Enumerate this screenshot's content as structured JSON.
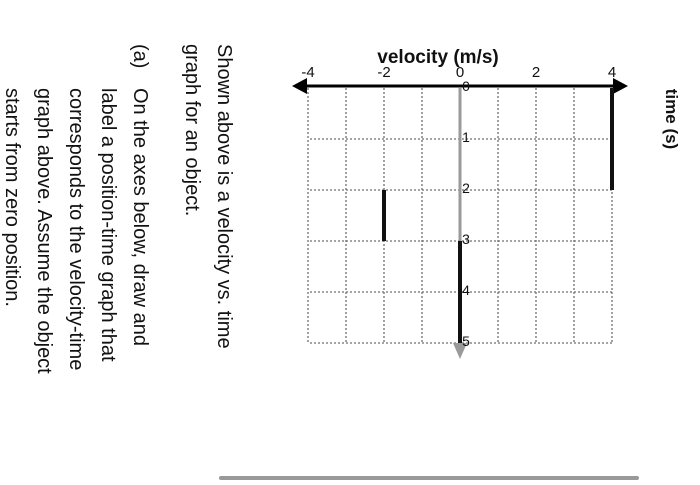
{
  "chart_data": {
    "type": "line",
    "title": "",
    "xlabel": "time (s)",
    "ylabel": "velocity (m/s)",
    "xlim": [
      0,
      5
    ],
    "ylim": [
      -4,
      4
    ],
    "x_ticks": [
      "0",
      "1",
      "2",
      "3",
      "4",
      "5"
    ],
    "y_ticks": [
      "-4",
      "-2",
      "0",
      "2",
      "4"
    ],
    "grid": true,
    "grid_style": "dotted",
    "segments": [
      {
        "x": [
          0,
          2
        ],
        "y": [
          4,
          4
        ]
      },
      {
        "x": [
          2,
          3
        ],
        "y": [
          -2,
          -2
        ]
      },
      {
        "x": [
          3,
          5
        ],
        "y": [
          0,
          0
        ]
      }
    ],
    "colors": {
      "data": "#111111",
      "time_axis": "#9a9a9a",
      "velocity_axis": "#000000",
      "grid": "#6f6f6f"
    }
  },
  "question": {
    "intro_lines": [
      "Shown above is a velocity vs. time",
      "graph for an object."
    ],
    "part_a_label": "(a)",
    "part_a_lines": [
      "On the axes below, draw and",
      "label a position-time graph that",
      "corresponds to the velocity-time",
      "graph above. Assume the object",
      "starts from zero position."
    ]
  }
}
